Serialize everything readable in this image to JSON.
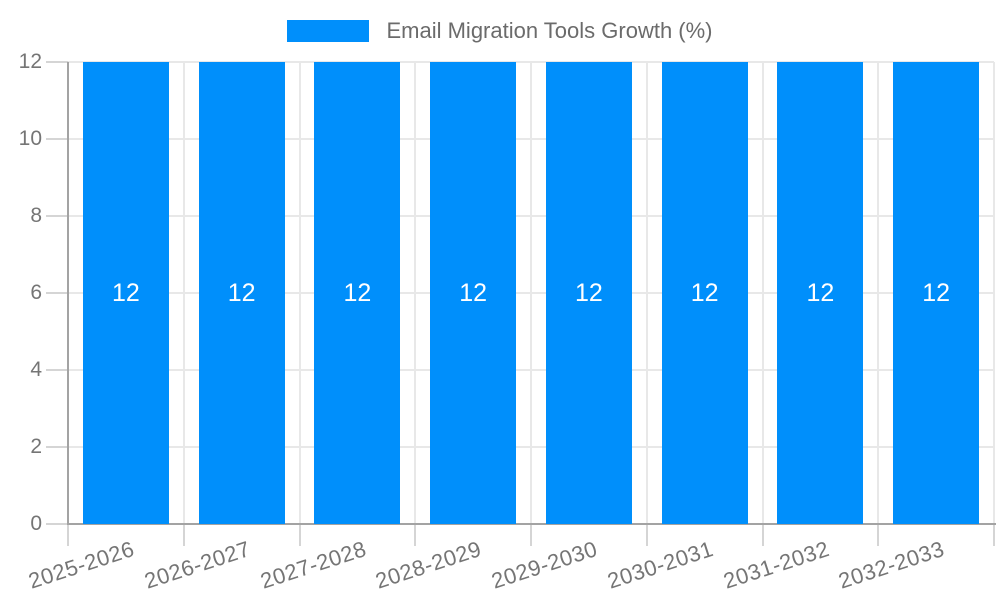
{
  "page": {
    "background": "#ffffff"
  },
  "legend": {
    "position": "top",
    "items": [
      {
        "label": "Email Migration Tools Growth (%)",
        "marker_color": "#008FFB"
      }
    ]
  },
  "chart_data": {
    "type": "bar",
    "title": "Email Migration Tools Growth (%)",
    "categories": [
      "2025-2026",
      "2026-2027",
      "2027-2028",
      "2028-2029",
      "2029-2030",
      "2030-2031",
      "2031-2032",
      "2032-2033"
    ],
    "values": [
      12,
      12,
      12,
      12,
      12,
      12,
      12,
      12
    ],
    "bar_value_labels": [
      "12",
      "12",
      "12",
      "12",
      "12",
      "12",
      "12",
      "12"
    ],
    "xlabel": "",
    "ylabel": "",
    "ylim": [
      0,
      12
    ],
    "yticks": [
      0,
      2,
      4,
      6,
      8,
      10,
      12
    ],
    "grid": true,
    "legend_position": "top",
    "x_label_rotation_deg": -18,
    "colors": {
      "bar": "#008FFB",
      "bar_label": "#ffffff",
      "axis_label": "#757575",
      "title": "#6b6b6b",
      "grid": "#e8e8e8",
      "tick": "#d5d5d5",
      "axis_line": "#a3a3a3"
    }
  }
}
